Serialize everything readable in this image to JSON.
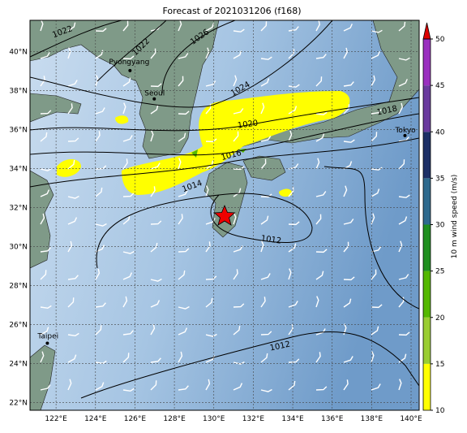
{
  "title": "Forecast of 2021031206 (f168)",
  "map": {
    "lon_range": [
      120.68,
      140.41
    ],
    "lat_range": [
      21.6,
      41.6
    ],
    "lon_ticks": [
      {
        "value": 122,
        "label": "122°E"
      },
      {
        "value": 124,
        "label": "124°E"
      },
      {
        "value": 126,
        "label": "126°E"
      },
      {
        "value": 128,
        "label": "128°E"
      },
      {
        "value": 130,
        "label": "130°E"
      },
      {
        "value": 132,
        "label": "132°E"
      },
      {
        "value": 134,
        "label": "134°E"
      },
      {
        "value": 136,
        "label": "136°E"
      },
      {
        "value": 138,
        "label": "138°E"
      },
      {
        "value": 140,
        "label": "140°E"
      }
    ],
    "lat_ticks": [
      {
        "value": 22,
        "label": "22°N"
      },
      {
        "value": 24,
        "label": "24°N"
      },
      {
        "value": 26,
        "label": "26°N"
      },
      {
        "value": 28,
        "label": "28°N"
      },
      {
        "value": 30,
        "label": "30°N"
      },
      {
        "value": 32,
        "label": "32°N"
      },
      {
        "value": 34,
        "label": "34°N"
      },
      {
        "value": 36,
        "label": "36°N"
      },
      {
        "value": 38,
        "label": "38°N"
      },
      {
        "value": 40,
        "label": "40°N"
      }
    ],
    "cities": [
      {
        "name": "Pyongyang",
        "lon": 125.75,
        "lat": 39.02
      },
      {
        "name": "Seoul",
        "lon": 126.98,
        "lat": 37.57
      },
      {
        "name": "Tokyo",
        "lon": 139.69,
        "lat": 35.69
      },
      {
        "name": "Taipei",
        "lon": 121.56,
        "lat": 25.04
      }
    ],
    "contour_labels": [
      1022,
      1022,
      1026,
      1024,
      1020,
      1018,
      1016,
      1014,
      1012,
      1012
    ]
  },
  "colorbar": {
    "label": "10 m wind speed (m/s)",
    "range": [
      10,
      50
    ],
    "ticks": [
      10,
      15,
      20,
      25,
      30,
      35,
      40,
      45,
      50
    ],
    "colors": [
      "#ffff00",
      "#9acd32",
      "#55b800",
      "#1f8f1f",
      "#2e6a8e",
      "#1c2f66",
      "#6a3a9e",
      "#9a2fbf"
    ],
    "extend_color": "#dd0000"
  }
}
